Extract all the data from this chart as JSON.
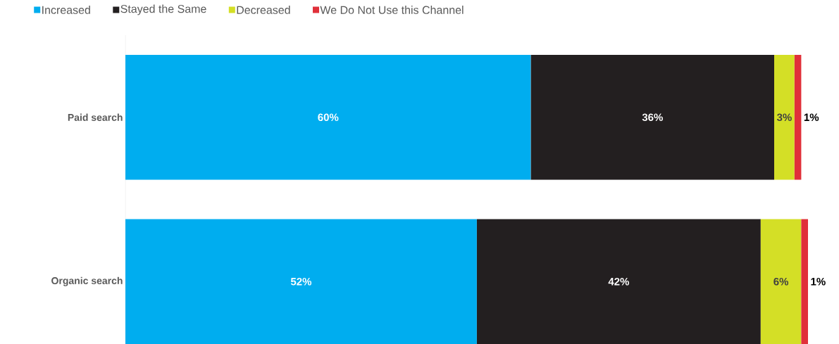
{
  "chart_data": {
    "type": "bar",
    "orientation": "horizontal",
    "stacked": true,
    "data_labels": true,
    "legend": "top",
    "categories": [
      "Paid search",
      "Organic search"
    ],
    "series": [
      {
        "name": "Increased",
        "color": "#00adef",
        "values": [
          60,
          52
        ],
        "value_labels": [
          "60%",
          "52%"
        ]
      },
      {
        "name": "Stayed the Same",
        "color": "#231f20",
        "values": [
          36,
          42
        ],
        "value_labels": [
          "36%",
          "42%"
        ]
      },
      {
        "name": "Decreased",
        "color": "#d4df26",
        "values": [
          3,
          6
        ],
        "value_labels": [
          "3%",
          "6%"
        ]
      },
      {
        "name": "We Do Not Use this Channel",
        "color": "#e0303a",
        "values": [
          1,
          1
        ],
        "value_labels": [
          "1%",
          "1%"
        ]
      }
    ]
  }
}
